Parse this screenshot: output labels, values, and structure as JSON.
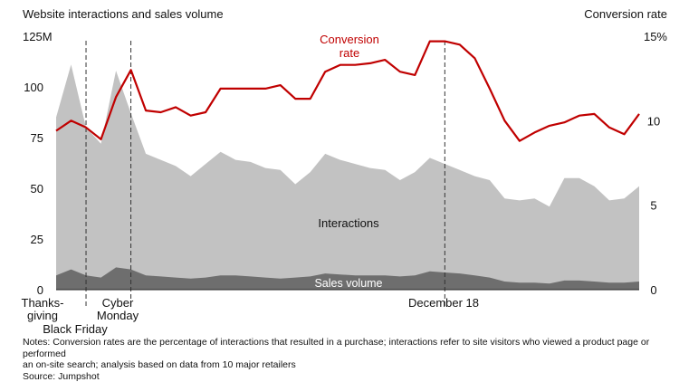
{
  "chart_data": {
    "type": "area",
    "title_left": "Website interactions and sales volume",
    "title_right": "Conversion rate",
    "left_axis": {
      "unit_label": "125M",
      "ticks": [
        0,
        25,
        50,
        75,
        100
      ],
      "range": [
        0,
        125
      ]
    },
    "right_axis": {
      "unit_label": "15%",
      "ticks": [
        0,
        5,
        10
      ],
      "range": [
        0,
        15
      ]
    },
    "x_labels": [
      {
        "text": [
          "Thanks-",
          "giving"
        ],
        "index": 1
      },
      {
        "text": [
          "Black Friday"
        ],
        "index": 2
      },
      {
        "text": [
          "Cyber",
          "Monday"
        ],
        "index": 5
      },
      {
        "text": [
          "December 18"
        ],
        "index": 26
      }
    ],
    "markers": [
      2,
      5,
      26
    ],
    "series": [
      {
        "name": "Interactions",
        "axis": "left",
        "color": "#c2c2c2",
        "values": [
          85,
          111,
          80,
          72,
          108,
          87,
          67,
          64,
          61,
          56,
          62,
          68,
          64,
          63,
          60,
          59,
          52,
          58,
          67,
          64,
          62,
          60,
          59,
          54,
          58,
          65,
          62,
          59,
          56,
          54,
          45,
          44,
          45,
          41,
          55,
          55,
          51,
          44,
          45,
          51
        ]
      },
      {
        "name": "Sales volume",
        "axis": "left",
        "color": "#6e6e6e",
        "values": [
          7,
          10,
          7,
          6,
          11,
          10,
          7,
          6.5,
          6,
          5.5,
          6,
          7,
          7,
          6.5,
          6,
          5.5,
          6,
          6.5,
          8,
          7.5,
          7,
          7,
          7,
          6.5,
          7,
          9,
          8.5,
          8,
          7,
          6,
          4,
          3.5,
          3.5,
          3,
          4.5,
          4.5,
          4,
          3.5,
          3.5,
          4
        ]
      },
      {
        "name": "Conversion rate",
        "axis": "right",
        "color": "#c00000",
        "values": [
          9.4,
          10.0,
          9.6,
          8.9,
          11.4,
          13.0,
          10.6,
          10.5,
          10.8,
          10.3,
          10.5,
          11.9,
          11.9,
          11.9,
          11.9,
          12.1,
          11.3,
          11.3,
          12.9,
          13.3,
          13.3,
          13.4,
          13.6,
          12.9,
          12.7,
          14.7,
          14.7,
          14.5,
          13.7,
          11.9,
          10.0,
          8.8,
          9.3,
          9.7,
          9.9,
          10.3,
          10.4,
          9.6,
          9.2,
          10.4
        ]
      }
    ],
    "series_labels": {
      "conversion": [
        "Conversion",
        "rate"
      ],
      "interactions": "Interactions",
      "sales": "Sales volume"
    }
  },
  "notes": {
    "lines": [
      "Notes: Conversion rates are the percentage of interactions that resulted in a purchase; interactions refer to site visitors who viewed a product page or performed",
      "an on-site search; analysis based on data from 10 major retailers",
      "Source: Jumpshot"
    ]
  }
}
